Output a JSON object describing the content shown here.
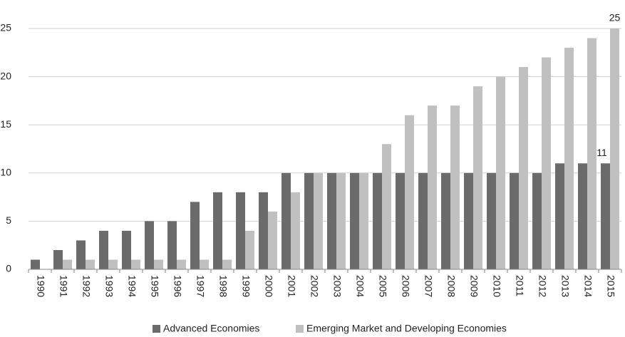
{
  "chart_data": {
    "type": "bar",
    "categories": [
      "1990",
      "1991",
      "1992",
      "1993",
      "1994",
      "1995",
      "1996",
      "1997",
      "1998",
      "1999",
      "2000",
      "2001",
      "2002",
      "2003",
      "2004",
      "2005",
      "2006",
      "2007",
      "2008",
      "2009",
      "2010",
      "2011",
      "2012",
      "2013",
      "2014",
      "2015"
    ],
    "series": [
      {
        "name": "Advanced Economies",
        "color": "#6b6b6b",
        "values": [
          1,
          2,
          3,
          4,
          4,
          5,
          5,
          7,
          8,
          8,
          8,
          10,
          10,
          10,
          10,
          10,
          10,
          10,
          10,
          10,
          10,
          10,
          10,
          11,
          11,
          11
        ]
      },
      {
        "name": "Emerging Market and Developing Economies",
        "color": "#c0c0c0",
        "values": [
          0,
          1,
          1,
          1,
          1,
          1,
          1,
          1,
          1,
          4,
          6,
          8,
          10,
          10,
          10,
          13,
          16,
          17,
          17,
          19,
          20,
          21,
          22,
          23,
          24,
          25
        ]
      }
    ],
    "ylim": [
      0,
      25
    ],
    "yticks": [
      0,
      5,
      10,
      15,
      20,
      25
    ],
    "grid": true,
    "legend": "bottom"
  }
}
